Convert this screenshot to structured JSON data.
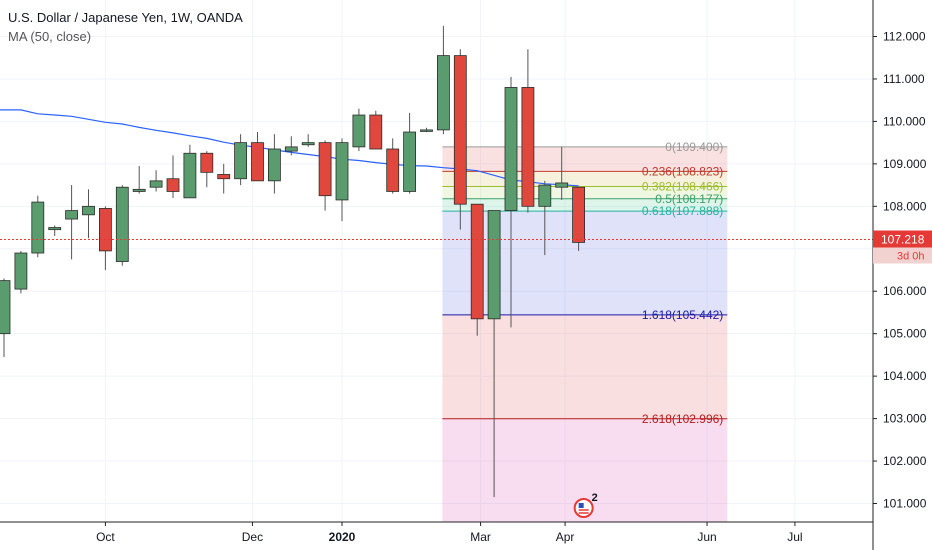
{
  "header": {
    "title": "U.S. Dollar / Japanese Yen, 1W, OANDA",
    "indicator": "MA (50, close)"
  },
  "chart_data": {
    "type": "candlestick",
    "symbol": "USDJPY",
    "interval": "1W",
    "ylim": [
      100.6,
      112.9
    ],
    "y_ticks": [
      "112.000",
      "111.000",
      "110.000",
      "109.000",
      "108.000",
      "107.000",
      "106.000",
      "105.000",
      "104.000",
      "103.000",
      "102.000",
      "101.000"
    ],
    "y_tick_values": [
      112,
      111,
      110,
      109,
      108,
      107,
      106,
      105,
      104,
      103,
      102,
      101
    ],
    "x_ticks": [
      {
        "label": "Oct",
        "bar": 6
      },
      {
        "label": "Dec",
        "bar": 14.7
      },
      {
        "label": "2020",
        "bar": 20,
        "bold": true
      },
      {
        "label": "Mar",
        "bar": 28.2
      },
      {
        "label": "Apr",
        "bar": 33.2
      },
      {
        "label": "Jun",
        "bar": 41.6
      },
      {
        "label": "Jul",
        "bar": 46.8
      }
    ],
    "candles": [
      {
        "o": 105.0,
        "h": 106.3,
        "l": 104.45,
        "c": 106.25
      },
      {
        "o": 106.05,
        "h": 106.95,
        "l": 105.95,
        "c": 106.9
      },
      {
        "o": 106.9,
        "h": 108.25,
        "l": 106.8,
        "c": 108.1
      },
      {
        "o": 107.45,
        "h": 107.55,
        "l": 107.3,
        "c": 107.5
      },
      {
        "o": 107.7,
        "h": 108.5,
        "l": 106.75,
        "c": 107.9
      },
      {
        "o": 107.8,
        "h": 108.4,
        "l": 107.25,
        "c": 108.0
      },
      {
        "o": 107.95,
        "h": 108.0,
        "l": 106.5,
        "c": 106.95
      },
      {
        "o": 106.7,
        "h": 108.5,
        "l": 106.6,
        "c": 108.45
      },
      {
        "o": 108.35,
        "h": 108.95,
        "l": 108.3,
        "c": 108.4
      },
      {
        "o": 108.45,
        "h": 108.85,
        "l": 108.35,
        "c": 108.6
      },
      {
        "o": 108.65,
        "h": 109.2,
        "l": 108.2,
        "c": 108.35
      },
      {
        "o": 108.2,
        "h": 109.45,
        "l": 108.2,
        "c": 109.25
      },
      {
        "o": 109.25,
        "h": 109.3,
        "l": 108.45,
        "c": 108.8
      },
      {
        "o": 108.75,
        "h": 109.0,
        "l": 108.3,
        "c": 108.65
      },
      {
        "o": 108.65,
        "h": 109.7,
        "l": 108.5,
        "c": 109.5
      },
      {
        "o": 109.5,
        "h": 109.75,
        "l": 108.6,
        "c": 108.6
      },
      {
        "o": 108.6,
        "h": 109.7,
        "l": 108.3,
        "c": 109.35
      },
      {
        "o": 109.3,
        "h": 109.65,
        "l": 109.2,
        "c": 109.4
      },
      {
        "o": 109.45,
        "h": 109.7,
        "l": 109.4,
        "c": 109.5
      },
      {
        "o": 109.5,
        "h": 109.55,
        "l": 107.9,
        "c": 108.25
      },
      {
        "o": 108.15,
        "h": 109.6,
        "l": 107.65,
        "c": 109.5
      },
      {
        "o": 109.4,
        "h": 110.3,
        "l": 109.3,
        "c": 110.15
      },
      {
        "o": 110.15,
        "h": 110.25,
        "l": 109.35,
        "c": 109.35
      },
      {
        "o": 109.35,
        "h": 109.6,
        "l": 108.3,
        "c": 108.35
      },
      {
        "o": 108.35,
        "h": 110.2,
        "l": 108.3,
        "c": 109.75
      },
      {
        "o": 109.8,
        "h": 109.85,
        "l": 109.75,
        "c": 109.8
      },
      {
        "o": 109.8,
        "h": 112.25,
        "l": 109.7,
        "c": 111.55
      },
      {
        "o": 111.55,
        "h": 111.7,
        "l": 107.45,
        "c": 108.05
      },
      {
        "o": 108.05,
        "h": 108.05,
        "l": 104.95,
        "c": 105.35
      },
      {
        "o": 105.35,
        "h": 107.9,
        "l": 101.15,
        "c": 107.9
      },
      {
        "o": 107.9,
        "h": 111.05,
        "l": 105.15,
        "c": 110.8
      },
      {
        "o": 110.8,
        "h": 111.7,
        "l": 107.85,
        "c": 108.0
      },
      {
        "o": 108.0,
        "h": 108.6,
        "l": 106.85,
        "c": 108.5
      },
      {
        "o": 108.45,
        "h": 109.4,
        "l": 108.15,
        "c": 108.55
      },
      {
        "o": 108.45,
        "h": 108.45,
        "l": 106.95,
        "c": 107.15
      }
    ],
    "moving_average": {
      "name": "MA (50, close)",
      "color": "#2962FF",
      "values": [
        110.27,
        110.27,
        110.18,
        110.15,
        110.12,
        110.05,
        109.98,
        109.94,
        109.86,
        109.79,
        109.73,
        109.66,
        109.6,
        109.51,
        109.44,
        109.39,
        109.33,
        109.27,
        109.22,
        109.17,
        109.11,
        109.08,
        109.03,
        108.99,
        108.96,
        108.95,
        108.91,
        108.88,
        108.84,
        108.73,
        108.62,
        108.58,
        108.53,
        108.51,
        108.48
      ]
    },
    "fibonacci": {
      "levels": [
        {
          "ratio": "0",
          "value": 109.4,
          "label": "0(109.400)",
          "color": "#999999"
        },
        {
          "ratio": "0.236",
          "value": 108.823,
          "label": "0.236(108.823)",
          "color": "#c0392b"
        },
        {
          "ratio": "0.382",
          "value": 108.466,
          "label": "0.382(108.466)",
          "color": "#9dbd2c"
        },
        {
          "ratio": "0.5",
          "value": 108.177,
          "label": "0.5(108.177)",
          "color": "#3aa169"
        },
        {
          "ratio": "0.618",
          "value": 107.888,
          "label": "0.618(107.888)",
          "color": "#25b3a0"
        },
        {
          "ratio": "1.618",
          "value": 105.442,
          "label": "1.618(105.442)",
          "color": "#1a1aa8"
        },
        {
          "ratio": "2.618",
          "value": 102.996,
          "label": "2.618(102.996)",
          "color": "#b71c1c"
        }
      ],
      "start_bar": 26,
      "end_bar": 42.8
    },
    "current_price": {
      "value": 107.218,
      "label": "107.218",
      "countdown": "3d 0h",
      "color": "#e53935"
    },
    "marker_badge": "2",
    "colors": {
      "up": "#5b9c6e",
      "down": "#e0483e",
      "border": "#2b2b2b"
    }
  }
}
